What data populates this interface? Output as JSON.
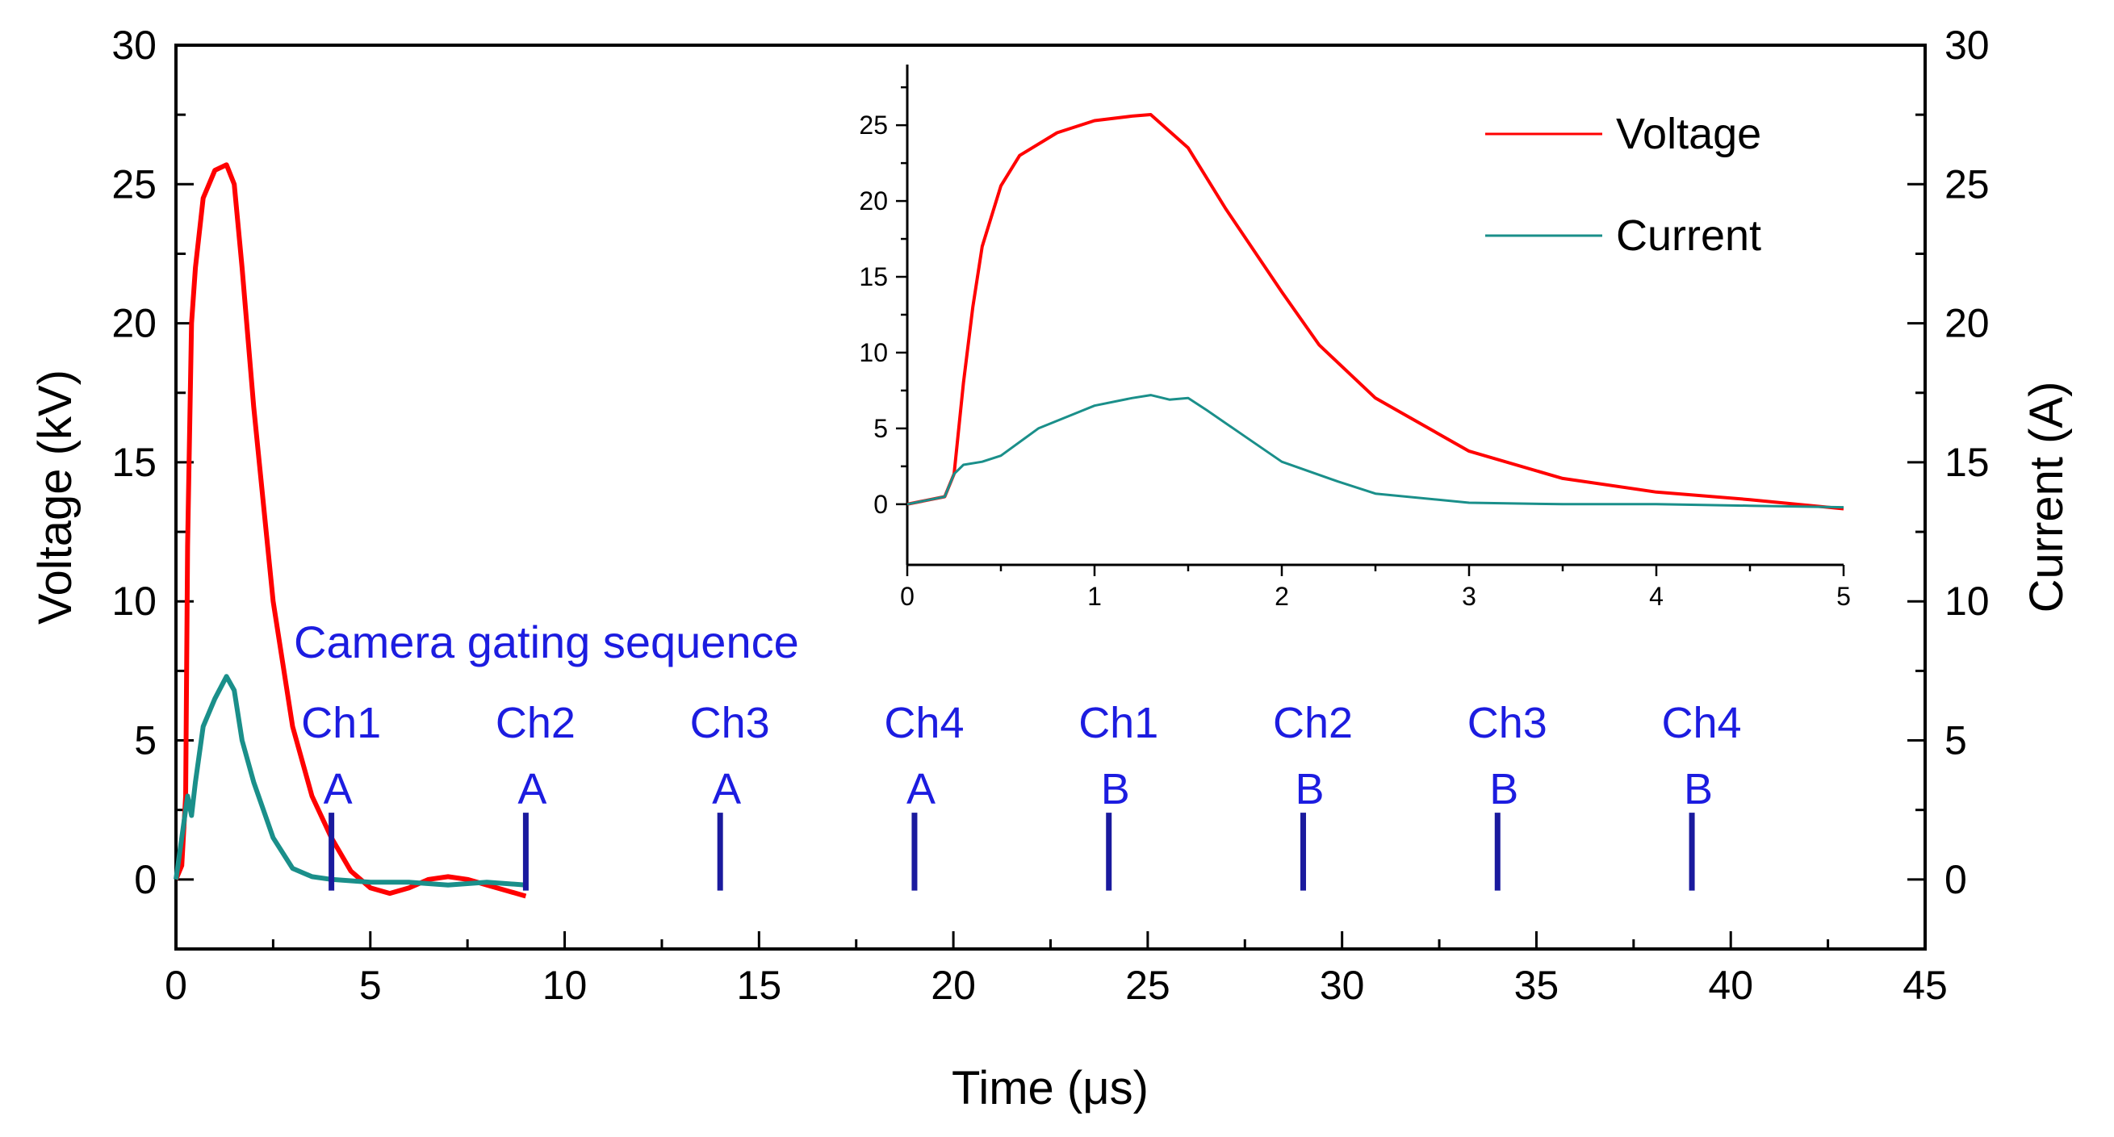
{
  "chart_data": {
    "type": "line",
    "main": {
      "xlabel": "Time (μs)",
      "ylabel_left": "Voltage (kV)",
      "ylabel_right": "Current (A)",
      "xlim": [
        0,
        45
      ],
      "ylim_left": [
        -2.5,
        30
      ],
      "ylim_right": [
        -2.5,
        30
      ],
      "xticks": [
        0,
        5,
        10,
        15,
        20,
        25,
        30,
        35,
        40,
        45
      ],
      "xtick_labels": [
        "0",
        "5",
        "10",
        "15",
        "20",
        "25",
        "30",
        "35",
        "40",
        "45"
      ],
      "yticks": [
        0,
        5,
        10,
        15,
        20,
        25,
        30
      ],
      "ytick_labels": [
        "0",
        "5",
        "10",
        "15",
        "20",
        "25",
        "30"
      ],
      "series": [
        {
          "name": "Voltage",
          "color": "#ff0000",
          "x": [
            0,
            0.15,
            0.25,
            0.3,
            0.4,
            0.5,
            0.7,
            1.0,
            1.3,
            1.5,
            1.7,
            2.0,
            2.5,
            3.0,
            3.5,
            4.0,
            4.5,
            5.0,
            5.5,
            6.0,
            6.5,
            7.0,
            7.5,
            8.0,
            8.5,
            9.0
          ],
          "y": [
            0,
            0.5,
            3,
            12,
            20,
            22,
            24.5,
            25.5,
            25.7,
            25,
            22,
            17,
            10,
            5.5,
            3,
            1.5,
            0.3,
            -0.3,
            -0.5,
            -0.3,
            0,
            0.1,
            0,
            -0.2,
            -0.4,
            -0.6
          ]
        },
        {
          "name": "Current",
          "color": "#1a8f8a",
          "x": [
            0,
            0.2,
            0.3,
            0.4,
            0.5,
            0.7,
            1.0,
            1.3,
            1.5,
            1.7,
            2.0,
            2.5,
            3.0,
            3.5,
            4.0,
            5.0,
            6.0,
            7.0,
            8.0,
            9.0
          ],
          "y": [
            0,
            2,
            3,
            2.3,
            3.5,
            5.5,
            6.5,
            7.3,
            6.8,
            5,
            3.5,
            1.5,
            0.4,
            0.1,
            0,
            -0.1,
            -0.1,
            -0.2,
            -0.1,
            -0.2
          ]
        }
      ]
    },
    "inset": {
      "xlim": [
        0,
        5
      ],
      "ylim": [
        -4,
        29
      ],
      "xticks": [
        0,
        1,
        2,
        3,
        4,
        5
      ],
      "xtick_labels": [
        "0",
        "1",
        "2",
        "3",
        "4",
        "5"
      ],
      "yticks": [
        0,
        5,
        10,
        15,
        20,
        25
      ],
      "ytick_labels": [
        "0",
        "5",
        "10",
        "15",
        "20",
        "25"
      ],
      "series": [
        {
          "name": "Voltage",
          "color": "#ff0000",
          "x": [
            0,
            0.2,
            0.25,
            0.3,
            0.35,
            0.4,
            0.5,
            0.6,
            0.8,
            1.0,
            1.2,
            1.3,
            1.5,
            1.7,
            2.0,
            2.2,
            2.5,
            3.0,
            3.5,
            4.0,
            4.5,
            5.0
          ],
          "y": [
            0,
            0.5,
            2,
            8,
            13,
            17,
            21,
            23,
            24.5,
            25.3,
            25.6,
            25.7,
            23.5,
            19.5,
            14,
            10.5,
            7,
            3.5,
            1.7,
            0.8,
            0.3,
            -0.3
          ]
        },
        {
          "name": "Current",
          "color": "#1a8f8a",
          "x": [
            0,
            0.2,
            0.25,
            0.3,
            0.4,
            0.5,
            0.7,
            1.0,
            1.2,
            1.3,
            1.4,
            1.5,
            1.6,
            1.8,
            2.0,
            2.3,
            2.5,
            3.0,
            3.5,
            4.0,
            4.5,
            5.0
          ],
          "y": [
            0,
            0.5,
            2,
            2.6,
            2.8,
            3.2,
            5,
            6.5,
            7,
            7.2,
            6.9,
            7,
            6.2,
            4.5,
            2.8,
            1.5,
            0.7,
            0.1,
            0,
            0,
            -0.1,
            -0.2
          ]
        }
      ]
    },
    "legend": [
      {
        "label": "Voltage",
        "color": "#ff0000"
      },
      {
        "label": "Current",
        "color": "#1a8f8a"
      }
    ],
    "gating": {
      "title": "Camera gating sequence",
      "color": "#1c1ce0",
      "marker_color": "#1a1a9e",
      "marker_y_range": [
        -0.4,
        2.4
      ],
      "markers": [
        {
          "t": 4,
          "channel": "Ch1",
          "frame": "A"
        },
        {
          "t": 9,
          "channel": "Ch2",
          "frame": "A"
        },
        {
          "t": 14,
          "channel": "Ch3",
          "frame": "A"
        },
        {
          "t": 19,
          "channel": "Ch4",
          "frame": "A"
        },
        {
          "t": 24,
          "channel": "Ch1",
          "frame": "B"
        },
        {
          "t": 29,
          "channel": "Ch2",
          "frame": "B"
        },
        {
          "t": 34,
          "channel": "Ch3",
          "frame": "B"
        },
        {
          "t": 39,
          "channel": "Ch4",
          "frame": "B"
        }
      ]
    }
  }
}
